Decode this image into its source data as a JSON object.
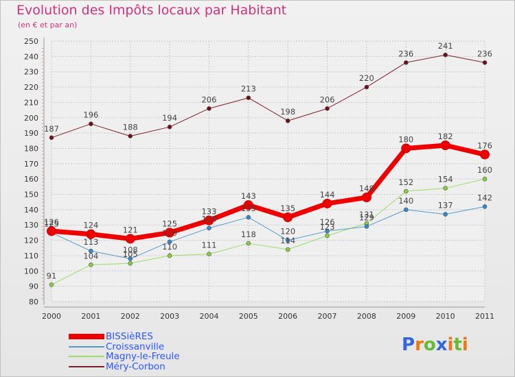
{
  "chart_data": {
    "type": "line",
    "title": "Evolution des Impôts locaux par Habitant",
    "subtitle": "(en € et par an)",
    "categories": [
      "2000",
      "2001",
      "2002",
      "2003",
      "2004",
      "2005",
      "2006",
      "2007",
      "2008",
      "2009",
      "2010",
      "2011"
    ],
    "ylim": [
      80,
      250
    ],
    "yticks": [
      80,
      90,
      100,
      110,
      120,
      130,
      140,
      150,
      160,
      170,
      180,
      190,
      200,
      210,
      220,
      230,
      240,
      250
    ],
    "grid": true,
    "legend_position": "bottom-left",
    "series": [
      {
        "name": "Méry-Corbon",
        "color": "#7a1f2a",
        "line_width": 1,
        "marker": "#6a1018",
        "values": [
          187,
          196,
          188,
          194,
          206,
          213,
          198,
          206,
          220,
          236,
          241,
          236
        ],
        "labels": [
          "187",
          "196",
          "188",
          "194",
          "206",
          "213",
          "198",
          "206",
          "220",
          "236",
          "241",
          "236"
        ]
      },
      {
        "name": "Magny-le-Freule",
        "color": "#99dd66",
        "line_width": 1,
        "marker": "#88cc44",
        "values": [
          91,
          104,
          105,
          110,
          111,
          118,
          114,
          123,
          131,
          152,
          154,
          160
        ],
        "labels": [
          "91",
          "104",
          "105",
          "110",
          "111",
          "118",
          "114",
          "123",
          "131",
          "152",
          "154",
          "160"
        ]
      },
      {
        "name": "Croissanville",
        "color": "#5599cc",
        "line_width": 1,
        "marker": "#3388cc",
        "values": [
          125,
          113,
          108,
          119,
          128,
          135,
          120,
          126,
          129,
          140,
          137,
          142
        ],
        "labels": [
          "125",
          "113",
          "108",
          "119",
          "128",
          "135",
          "120",
          "126",
          "129",
          "140",
          "137",
          "142"
        ]
      },
      {
        "name": "BISSièRES",
        "color": "#ee0000",
        "line_width": 7,
        "marker": "#ee0000",
        "values": [
          126,
          124,
          121,
          125,
          133,
          143,
          135,
          144,
          148,
          180,
          182,
          176
        ],
        "labels": [
          "126",
          "124",
          "121",
          "125",
          "133",
          "143",
          "135",
          "144",
          "148",
          "180",
          "182",
          "176"
        ]
      }
    ]
  },
  "legend": {
    "items": [
      {
        "label": "BISSièRES",
        "color": "#ee0000"
      },
      {
        "label": "Croissanville",
        "color": "#5599cc"
      },
      {
        "label": "Magny-le-Freule",
        "color": "#99dd66"
      },
      {
        "label": "Méry-Corbon",
        "color": "#7a1f2a"
      }
    ]
  },
  "logo": {
    "letters": [
      "P",
      "r",
      "o",
      "x",
      "i",
      "t",
      "i"
    ],
    "colors": [
      "#3366dd",
      "#ee7711",
      "#66bb33",
      "#3366dd",
      "#ee7711",
      "#66bb33",
      "#ee7711"
    ]
  }
}
